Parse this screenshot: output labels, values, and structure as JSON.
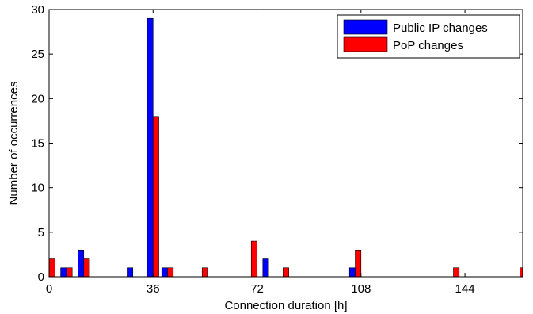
{
  "chart_data": {
    "type": "bar",
    "xlabel": "Connection duration [h]",
    "ylabel": "Number of occurrences",
    "xlim": [
      0,
      164
    ],
    "ylim": [
      0,
      30
    ],
    "x_ticks": [
      0,
      36,
      72,
      108,
      144
    ],
    "y_ticks": [
      0,
      5,
      10,
      15,
      20,
      25,
      30
    ],
    "grid": false,
    "legend_position": "top-right",
    "bin_width": 2,
    "series": [
      {
        "name": "Public IP changes",
        "color": "#0000ff",
        "points": [
          {
            "x": 5,
            "y": 1
          },
          {
            "x": 11,
            "y": 3
          },
          {
            "x": 28,
            "y": 1
          },
          {
            "x": 35,
            "y": 29
          },
          {
            "x": 40,
            "y": 1
          },
          {
            "x": 75,
            "y": 2
          },
          {
            "x": 105,
            "y": 1
          }
        ]
      },
      {
        "name": "PoP changes",
        "color": "#ff0000",
        "points": [
          {
            "x": 1,
            "y": 2
          },
          {
            "x": 7,
            "y": 1
          },
          {
            "x": 13,
            "y": 2
          },
          {
            "x": 37,
            "y": 18
          },
          {
            "x": 42,
            "y": 1
          },
          {
            "x": 54,
            "y": 1
          },
          {
            "x": 71,
            "y": 4
          },
          {
            "x": 82,
            "y": 1
          },
          {
            "x": 107,
            "y": 3
          },
          {
            "x": 141,
            "y": 1
          },
          {
            "x": 164,
            "y": 1
          }
        ]
      }
    ]
  }
}
